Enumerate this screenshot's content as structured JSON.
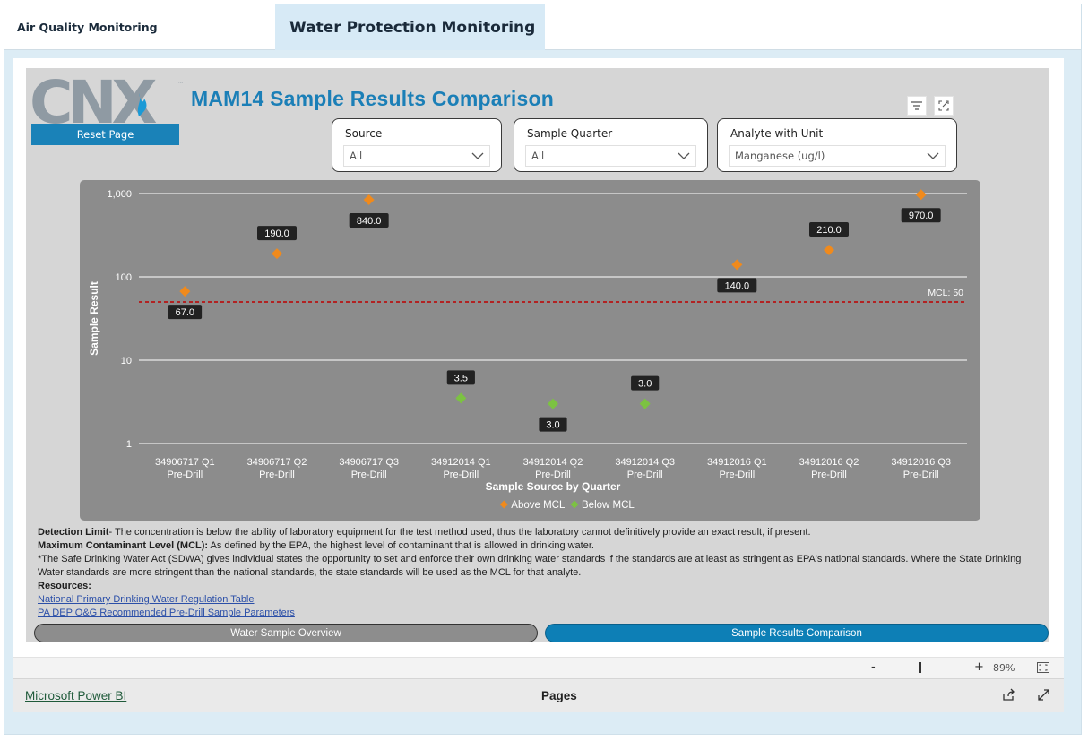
{
  "tabs": [
    {
      "label": "Air Quality Monitoring",
      "active": false
    },
    {
      "label": "Water Protection Monitoring",
      "active": true
    }
  ],
  "report": {
    "logo_text": "CNX",
    "reset_label": "Reset Page",
    "title": "MAM14 Sample Results Comparison",
    "header_icons": [
      "filter-icon",
      "focus-mode-icon"
    ]
  },
  "slicers": {
    "source": {
      "label": "Source",
      "value": "All"
    },
    "quarter": {
      "label": "Sample Quarter",
      "value": "All"
    },
    "analyte": {
      "label": "Analyte with Unit",
      "value": "Manganese (ug/l)"
    }
  },
  "chart_data": {
    "type": "scatter",
    "x_title": "Sample Source by Quarter",
    "y_title": "Sample Result",
    "y_scale": "log",
    "ylim": [
      1,
      1000
    ],
    "y_ticks": [
      "1",
      "10",
      "100",
      "1,000"
    ],
    "categories": [
      {
        "line1": "34906717 Q1",
        "line2": "Pre-Drill"
      },
      {
        "line1": "34906717 Q2",
        "line2": "Pre-Drill"
      },
      {
        "line1": "34906717 Q3",
        "line2": "Pre-Drill"
      },
      {
        "line1": "34912014 Q1",
        "line2": "Pre-Drill"
      },
      {
        "line1": "34912014 Q2",
        "line2": "Pre-Drill"
      },
      {
        "line1": "34912014 Q3",
        "line2": "Pre-Drill"
      },
      {
        "line1": "34912016 Q1",
        "line2": "Pre-Drill"
      },
      {
        "line1": "34912016 Q2",
        "line2": "Pre-Drill"
      },
      {
        "line1": "34912016 Q3",
        "line2": "Pre-Drill"
      }
    ],
    "points": [
      {
        "value": 67.0,
        "label": "67.0",
        "series": "Above MCL",
        "label_pos": "below"
      },
      {
        "value": 190.0,
        "label": "190.0",
        "series": "Above MCL",
        "label_pos": "above"
      },
      {
        "value": 840.0,
        "label": "840.0",
        "series": "Above MCL",
        "label_pos": "below"
      },
      {
        "value": 3.5,
        "label": "3.5",
        "series": "Below MCL",
        "label_pos": "above"
      },
      {
        "value": 3.0,
        "label": "3.0",
        "series": "Below MCL",
        "label_pos": "below"
      },
      {
        "value": 3.0,
        "label": "3.0",
        "series": "Below MCL",
        "label_pos": "above"
      },
      {
        "value": 140.0,
        "label": "140.0",
        "series": "Above MCL",
        "label_pos": "below"
      },
      {
        "value": 210.0,
        "label": "210.0",
        "series": "Above MCL",
        "label_pos": "above"
      },
      {
        "value": 970.0,
        "label": "970.0",
        "series": "Above MCL",
        "label_pos": "below"
      }
    ],
    "reference_line": {
      "value": 50,
      "label": "MCL: 50",
      "color": "#b22222"
    },
    "series": [
      {
        "name": "Above MCL",
        "color": "#f08a1c"
      },
      {
        "name": "Below MCL",
        "color": "#7cc242"
      }
    ],
    "legend_position": "bottom-center",
    "grid": true
  },
  "notes": {
    "detection_title": "Detection Limit",
    "detection_text": "-  The concentration is below the ability of laboratory equipment for the test method used, thus the laboratory cannot definitively provide an exact result, if present.",
    "mcl_title": "Maximum Contaminant Level (MCL):",
    "mcl_text": "  As defined by the EPA, the highest level of contaminant that is allowed in drinking water.",
    "sdwa_text": "*The Safe Drinking Water Act (SDWA) gives individual states the opportunity to set and enforce their own drinking water standards if the standards are at least as stringent as EPA's national standards.  Where the State Drinking Water standards are more stringent than the national standards, the state standards will be used as the MCL for that analyte.",
    "resources_title": "Resources:",
    "link1": "National Primary Drinking Water Regulation Table",
    "link2": "PA DEP O&G Recommended Pre-Drill Sample Parameters"
  },
  "nav": {
    "overview": "Water Sample Overview",
    "comparison": "Sample Results Comparison"
  },
  "zoom": {
    "minus": "-",
    "plus": "+",
    "level": "89%"
  },
  "footer": {
    "powerbi": "Microsoft Power BI",
    "pages": "Pages"
  },
  "colors": {
    "accent": "#1b7fb7",
    "above": "#f08a1c",
    "below": "#7cc242",
    "plot_bg": "#8c8c8c"
  }
}
